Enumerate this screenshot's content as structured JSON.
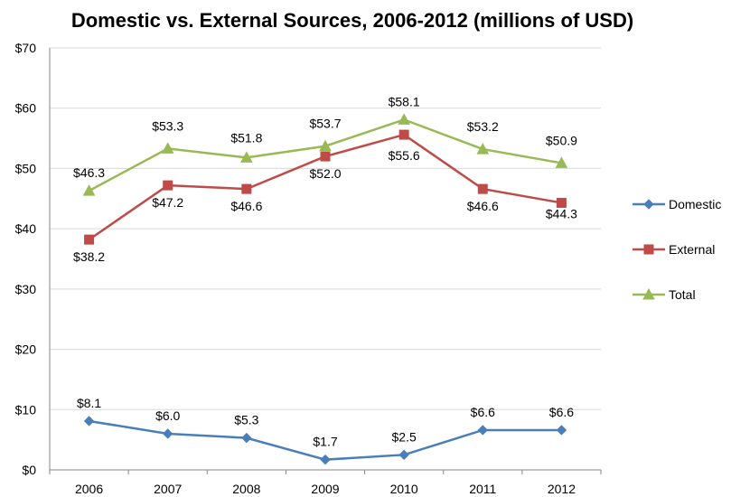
{
  "chart_data": {
    "type": "line",
    "title": "Domestic vs. External Sources, 2006-2012 (millions of USD)",
    "xlabel": "",
    "ylabel": "",
    "categories": [
      "2006",
      "2007",
      "2008",
      "2009",
      "2010",
      "2011",
      "2012"
    ],
    "ylim": [
      0,
      70
    ],
    "yticks": [
      0,
      10,
      20,
      30,
      40,
      50,
      60,
      70
    ],
    "ytick_labels": [
      "$0",
      "$10",
      "$20",
      "$30",
      "$40",
      "$50",
      "$60",
      "$70"
    ],
    "grid": "horizontal",
    "legend_position": "right",
    "series": [
      {
        "name": "Domestic",
        "color": "#4a7ebb",
        "marker": "diamond",
        "values": [
          8.1,
          6.0,
          5.3,
          1.7,
          2.5,
          6.6,
          6.6
        ],
        "labels": [
          "$8.1",
          "$6.0",
          "$5.3",
          "$1.7",
          "$2.5",
          "$6.6",
          "$6.6"
        ]
      },
      {
        "name": "External",
        "color": "#be4b48",
        "marker": "square",
        "values": [
          38.2,
          47.2,
          46.6,
          52.0,
          55.6,
          46.6,
          44.3
        ],
        "labels": [
          "$38.2",
          "$47.2",
          "$46.6",
          "$52.0",
          "$55.6",
          "$46.6",
          "$44.3"
        ]
      },
      {
        "name": "Total",
        "color": "#98b954",
        "marker": "triangle",
        "values": [
          46.3,
          53.3,
          51.8,
          53.7,
          58.1,
          53.2,
          50.9
        ],
        "labels": [
          "$46.3",
          "$53.3",
          "$51.8",
          "$53.7",
          "$58.1",
          "$53.2",
          "$50.9"
        ]
      }
    ]
  }
}
